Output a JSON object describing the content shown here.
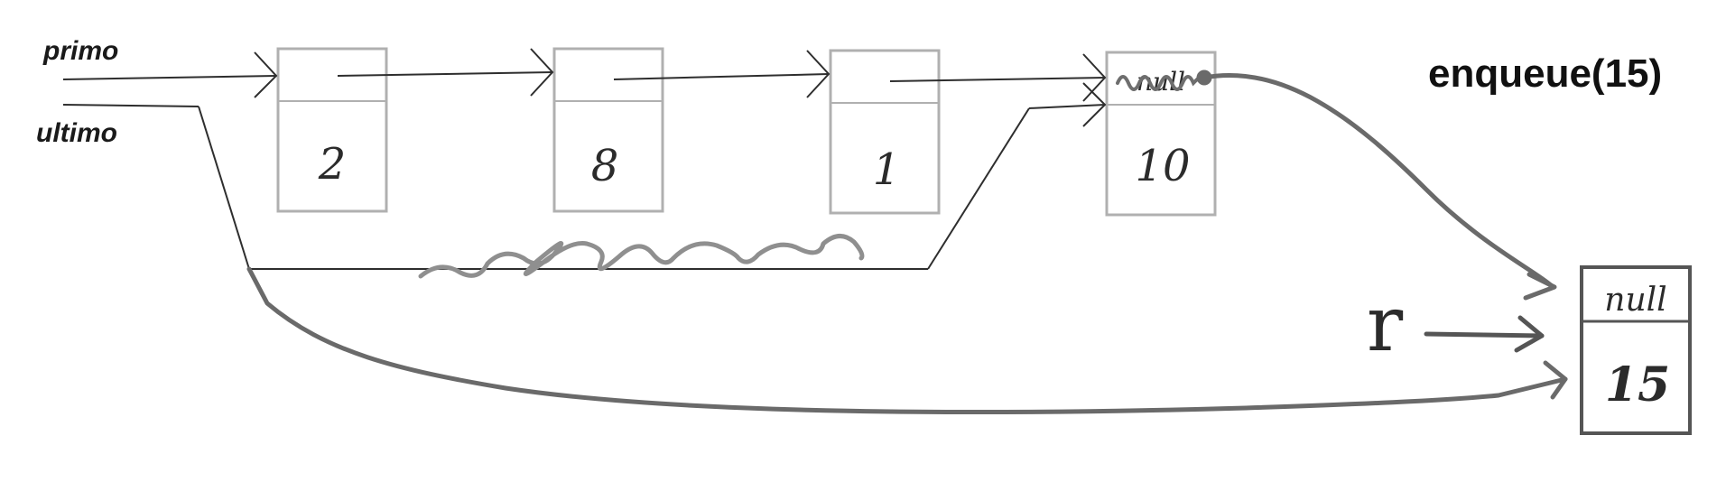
{
  "title": "enqueue(15)",
  "pointers": {
    "primo": "primo",
    "ultimo": "ultimo",
    "r": "r"
  },
  "nodes": [
    {
      "value": "2",
      "next": ""
    },
    {
      "value": "8",
      "next": ""
    },
    {
      "value": "1",
      "next": ""
    },
    {
      "value": "10",
      "next": "null"
    },
    {
      "value": "15",
      "next": "null"
    }
  ],
  "colors": {
    "old_nodes": "#b0b0b0",
    "new_node": "#555555",
    "ink": "#2e2e2e",
    "new_links": "#6a6a6a"
  }
}
